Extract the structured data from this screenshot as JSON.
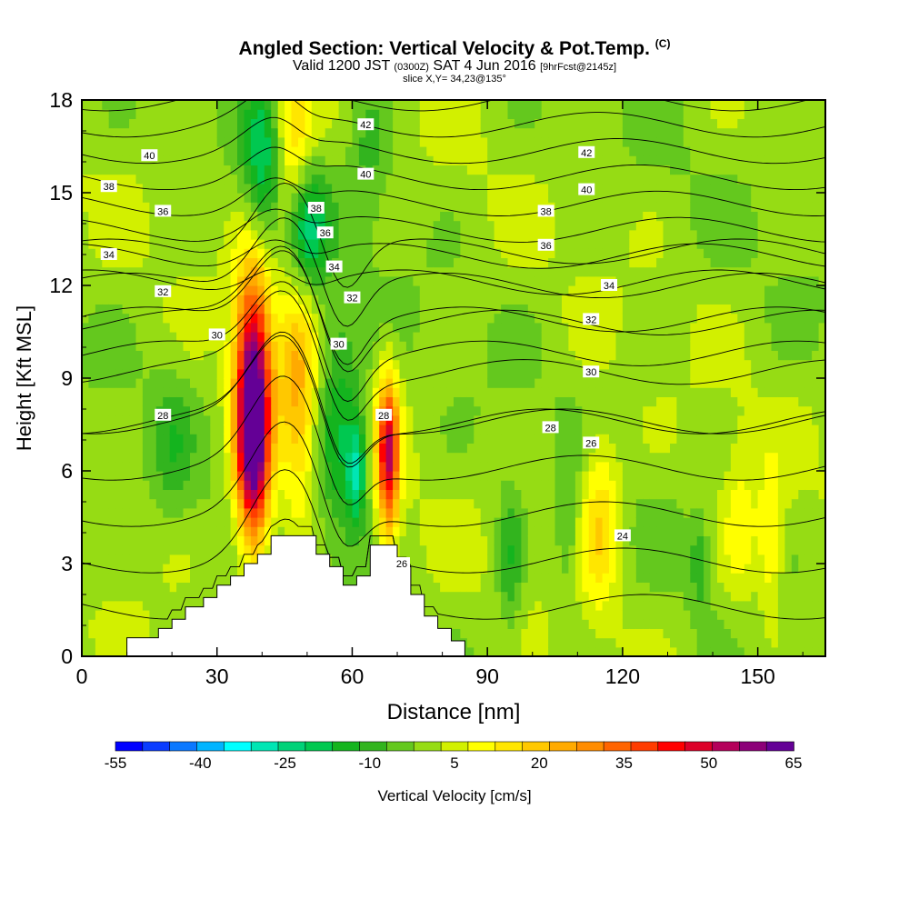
{
  "header": {
    "title": "Angled Section: Vertical Velocity & Pot.Temp.",
    "title_tag": "(C)",
    "valid_prefix": "Valid 1200 JST",
    "valid_utc": "(0300Z)",
    "valid_date": "SAT 4 Jun 2016",
    "valid_fcst": "[9hrFcst@2145z]",
    "slice": "slice X,Y= 34,23@135°"
  },
  "chart_data": {
    "type": "heatmap",
    "xlabel": "Distance [nm]",
    "ylabel": "Height [Kft MSL]",
    "xlim": [
      0,
      165
    ],
    "ylim": [
      0,
      18
    ],
    "x_ticks": [
      "0",
      "30",
      "60",
      "90",
      "120",
      "150"
    ],
    "x_tick_values": [
      0,
      30,
      60,
      90,
      120,
      150
    ],
    "y_ticks": [
      "0",
      "3",
      "6",
      "9",
      "12",
      "15",
      "18"
    ],
    "y_tick_values": [
      0,
      3,
      6,
      9,
      12,
      15,
      18
    ],
    "colorbar": {
      "label": "Vertical Velocity [cm/s]",
      "tick_labels": [
        "-55",
        "-40",
        "-25",
        "-10",
        "5",
        "20",
        "35",
        "50",
        "65"
      ],
      "levels": [
        -55,
        -50,
        -45,
        -40,
        -35,
        -30,
        -25,
        -20,
        -15,
        -10,
        -5,
        0,
        5,
        10,
        15,
        20,
        25,
        30,
        35,
        40,
        45,
        50,
        55,
        60,
        65
      ],
      "colors": [
        "#0000ff",
        "#0a3cff",
        "#0a78ff",
        "#00b4ff",
        "#00ffff",
        "#00e6b4",
        "#00d278",
        "#00c850",
        "#14b41e",
        "#32b41e",
        "#64c81e",
        "#96dc14",
        "#d2f000",
        "#ffff00",
        "#ffe600",
        "#ffc800",
        "#ffaa00",
        "#ff8c00",
        "#ff6400",
        "#ff3c00",
        "#ff0000",
        "#dc0028",
        "#b4005a",
        "#8c0078",
        "#640096"
      ]
    },
    "terrain_profile": {
      "x": [
        0,
        10,
        10,
        17,
        17,
        20,
        20,
        23,
        23,
        27,
        27,
        30,
        30,
        33,
        33,
        36,
        36,
        39,
        39,
        42,
        42,
        45,
        45,
        48,
        48,
        52,
        52,
        55,
        55,
        58,
        58,
        61,
        61,
        64,
        64,
        67,
        67,
        70,
        70,
        73,
        73,
        76,
        76,
        79,
        79,
        82,
        82,
        85,
        85,
        165
      ],
      "y": [
        0,
        0,
        0.6,
        0.6,
        0.9,
        0.9,
        1.2,
        1.2,
        1.6,
        1.6,
        1.9,
        1.9,
        2.3,
        2.3,
        2.6,
        2.6,
        3.0,
        3.0,
        3.3,
        3.3,
        3.9,
        3.9,
        3.9,
        3.9,
        3.9,
        3.9,
        3.3,
        3.3,
        2.9,
        2.9,
        2.3,
        2.3,
        2.6,
        2.6,
        3.6,
        3.6,
        3.6,
        3.6,
        2.9,
        2.9,
        2.0,
        2.0,
        1.3,
        1.3,
        0.9,
        0.9,
        0.5,
        0.5,
        0,
        0
      ]
    },
    "velocity_features": [
      {
        "x": 38,
        "y": 9.0,
        "sx": 2.8,
        "sy": 2.6,
        "v": 60
      },
      {
        "x": 38,
        "y": 6.0,
        "sx": 2.5,
        "sy": 2.0,
        "v": 40
      },
      {
        "x": 48,
        "y": 8.5,
        "sx": 3.0,
        "sy": 2.8,
        "v": 22
      },
      {
        "x": 47,
        "y": 16.5,
        "sx": 3.0,
        "sy": 2.0,
        "v": 18
      },
      {
        "x": 68,
        "y": 6.5,
        "sx": 1.7,
        "sy": 1.8,
        "v": 50
      },
      {
        "x": 115,
        "y": 4.5,
        "sx": 3.2,
        "sy": 2.0,
        "v": 18
      },
      {
        "x": 146,
        "y": 4.0,
        "sx": 3.0,
        "sy": 2.0,
        "v": 10
      },
      {
        "x": 153,
        "y": 3.5,
        "sx": 2.0,
        "sy": 1.8,
        "v": 12
      },
      {
        "x": 40,
        "y": 15.8,
        "sx": 3.0,
        "sy": 2.0,
        "v": -20
      },
      {
        "x": 50,
        "y": 13.8,
        "sx": 3.0,
        "sy": 1.5,
        "v": -25
      },
      {
        "x": 57,
        "y": 7.5,
        "sx": 3.5,
        "sy": 2.6,
        "v": -18
      },
      {
        "x": 61,
        "y": 6.0,
        "sx": 1.5,
        "sy": 1.2,
        "v": -25
      },
      {
        "x": 20,
        "y": 7.0,
        "sx": 3.0,
        "sy": 1.8,
        "v": -8
      },
      {
        "x": 95,
        "y": 3.0,
        "sx": 2.0,
        "sy": 1.8,
        "v": -12
      },
      {
        "x": 108,
        "y": 4.0,
        "sx": 2.0,
        "sy": 1.8,
        "v": -8
      },
      {
        "x": 137,
        "y": 3.0,
        "sx": 1.5,
        "sy": 1.0,
        "v": -10
      },
      {
        "x": 64,
        "y": 16.5,
        "sx": 3.0,
        "sy": 2.0,
        "v": -8
      }
    ],
    "theta_levels": [
      23,
      24,
      25,
      26,
      27,
      28,
      29,
      30,
      31,
      32,
      33,
      34,
      35,
      36,
      37,
      38,
      39,
      40,
      41,
      42,
      43
    ],
    "theta_labels": [
      {
        "text": "40",
        "x": 15,
        "y": 16.2
      },
      {
        "text": "38",
        "x": 6,
        "y": 15.2
      },
      {
        "text": "36",
        "x": 18,
        "y": 14.4
      },
      {
        "text": "34",
        "x": 6,
        "y": 13.0
      },
      {
        "text": "32",
        "x": 18,
        "y": 11.8
      },
      {
        "text": "30",
        "x": 30,
        "y": 10.4
      },
      {
        "text": "28",
        "x": 18,
        "y": 7.8
      },
      {
        "text": "42",
        "x": 63,
        "y": 17.2
      },
      {
        "text": "40",
        "x": 63,
        "y": 15.6
      },
      {
        "text": "38",
        "x": 52,
        "y": 14.5
      },
      {
        "text": "36",
        "x": 54,
        "y": 13.7
      },
      {
        "text": "34",
        "x": 56,
        "y": 12.6
      },
      {
        "text": "32",
        "x": 60,
        "y": 11.6
      },
      {
        "text": "30",
        "x": 57,
        "y": 10.1
      },
      {
        "text": "28",
        "x": 67,
        "y": 7.8
      },
      {
        "text": "26",
        "x": 71,
        "y": 3.0
      },
      {
        "text": "42",
        "x": 112,
        "y": 16.3
      },
      {
        "text": "40",
        "x": 112,
        "y": 15.1
      },
      {
        "text": "38",
        "x": 103,
        "y": 14.4
      },
      {
        "text": "36",
        "x": 103,
        "y": 13.3
      },
      {
        "text": "34",
        "x": 117,
        "y": 12.0
      },
      {
        "text": "32",
        "x": 113,
        "y": 10.9
      },
      {
        "text": "30",
        "x": 113,
        "y": 9.2
      },
      {
        "text": "28",
        "x": 104,
        "y": 7.4
      },
      {
        "text": "26",
        "x": 113,
        "y": 6.9
      },
      {
        "text": "24",
        "x": 120,
        "y": 3.9
      }
    ]
  }
}
